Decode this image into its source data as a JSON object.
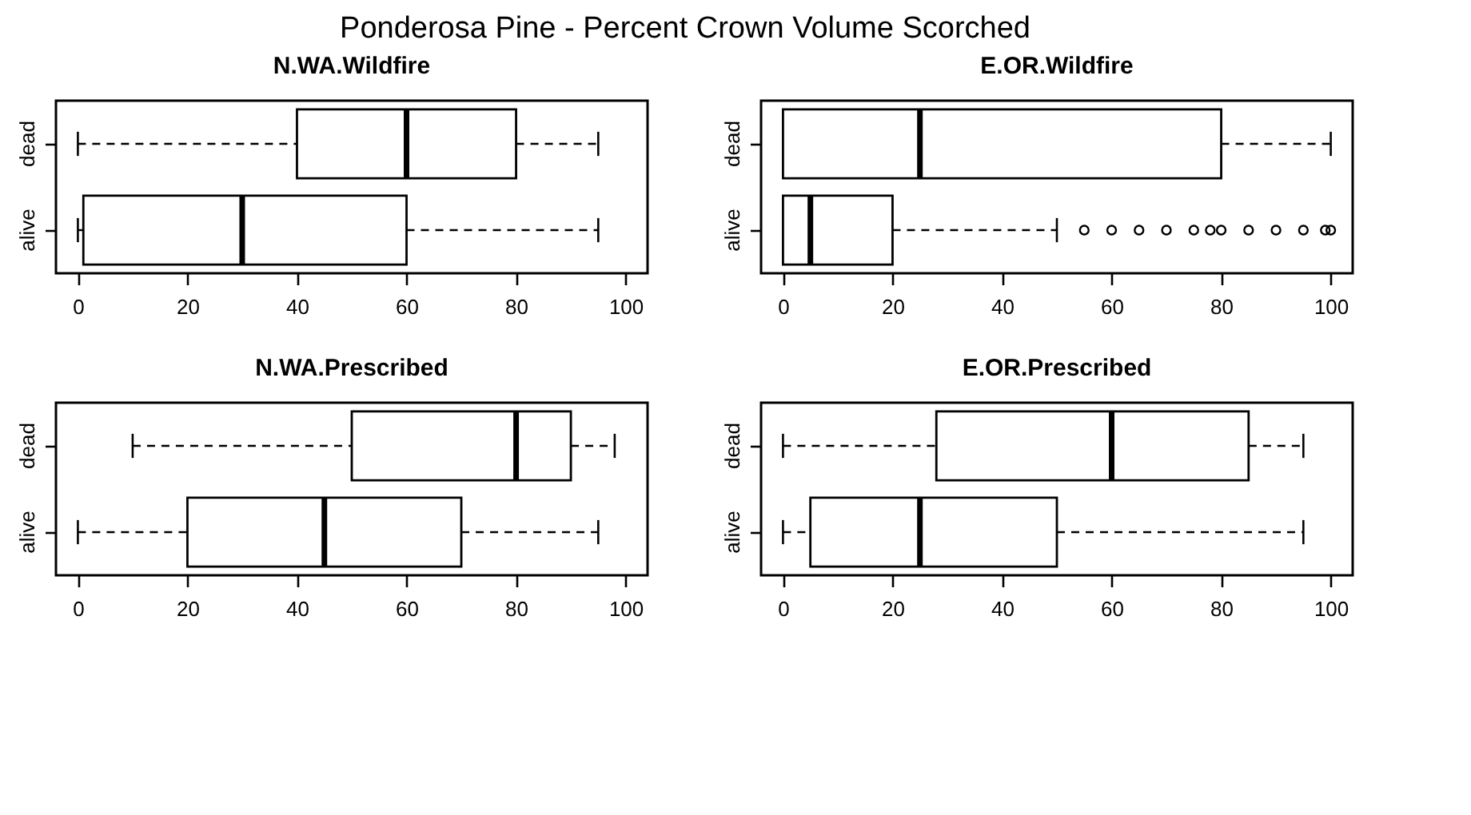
{
  "chart_data": [
    {
      "type": "box",
      "title": "N.WA.Wildfire",
      "annotations": [
        "Ponderosa Pine - Percent Crown Volume Scorched"
      ],
      "orientation": "horizontal",
      "categories": [
        "dead",
        "alive"
      ],
      "xlim": [
        -4,
        104
      ],
      "xticks": [
        0,
        20,
        40,
        60,
        80,
        100
      ],
      "boxes": [
        {
          "low": 0,
          "q1": 40,
          "median": 60,
          "q3": 80,
          "high": 95
        },
        {
          "low": 0,
          "q1": 1,
          "median": 30,
          "q3": 60,
          "high": 95
        }
      ]
    },
    {
      "type": "box",
      "title": "E.OR.Wildfire",
      "orientation": "horizontal",
      "categories": [
        "dead",
        "alive"
      ],
      "xlim": [
        -4,
        104
      ],
      "xticks": [
        0,
        20,
        40,
        60,
        80,
        100
      ],
      "boxes": [
        {
          "low": 0,
          "q1": 0,
          "median": 25,
          "q3": 80,
          "high": 100
        },
        {
          "low": 0,
          "q1": 0,
          "median": 5,
          "q3": 20,
          "high": 50,
          "outliers": [
            55,
            60,
            65,
            70,
            75,
            78,
            80,
            85,
            90,
            95,
            99,
            100
          ]
        }
      ]
    },
    {
      "type": "box",
      "title": "N.WA.Prescribed",
      "orientation": "horizontal",
      "categories": [
        "dead",
        "alive"
      ],
      "xlim": [
        -4,
        104
      ],
      "xticks": [
        0,
        20,
        40,
        60,
        80,
        100
      ],
      "boxes": [
        {
          "low": 10,
          "q1": 50,
          "median": 80,
          "q3": 90,
          "high": 98
        },
        {
          "low": 0,
          "q1": 20,
          "median": 45,
          "q3": 70,
          "high": 95
        }
      ]
    },
    {
      "type": "box",
      "title": "E.OR.Prescribed",
      "orientation": "horizontal",
      "categories": [
        "dead",
        "alive"
      ],
      "xlim": [
        -4,
        104
      ],
      "xticks": [
        0,
        20,
        40,
        60,
        80,
        100
      ],
      "boxes": [
        {
          "low": 0,
          "q1": 28,
          "median": 60,
          "q3": 85,
          "high": 95
        },
        {
          "low": 0,
          "q1": 5,
          "median": 25,
          "q3": 50,
          "high": 95
        }
      ]
    }
  ]
}
